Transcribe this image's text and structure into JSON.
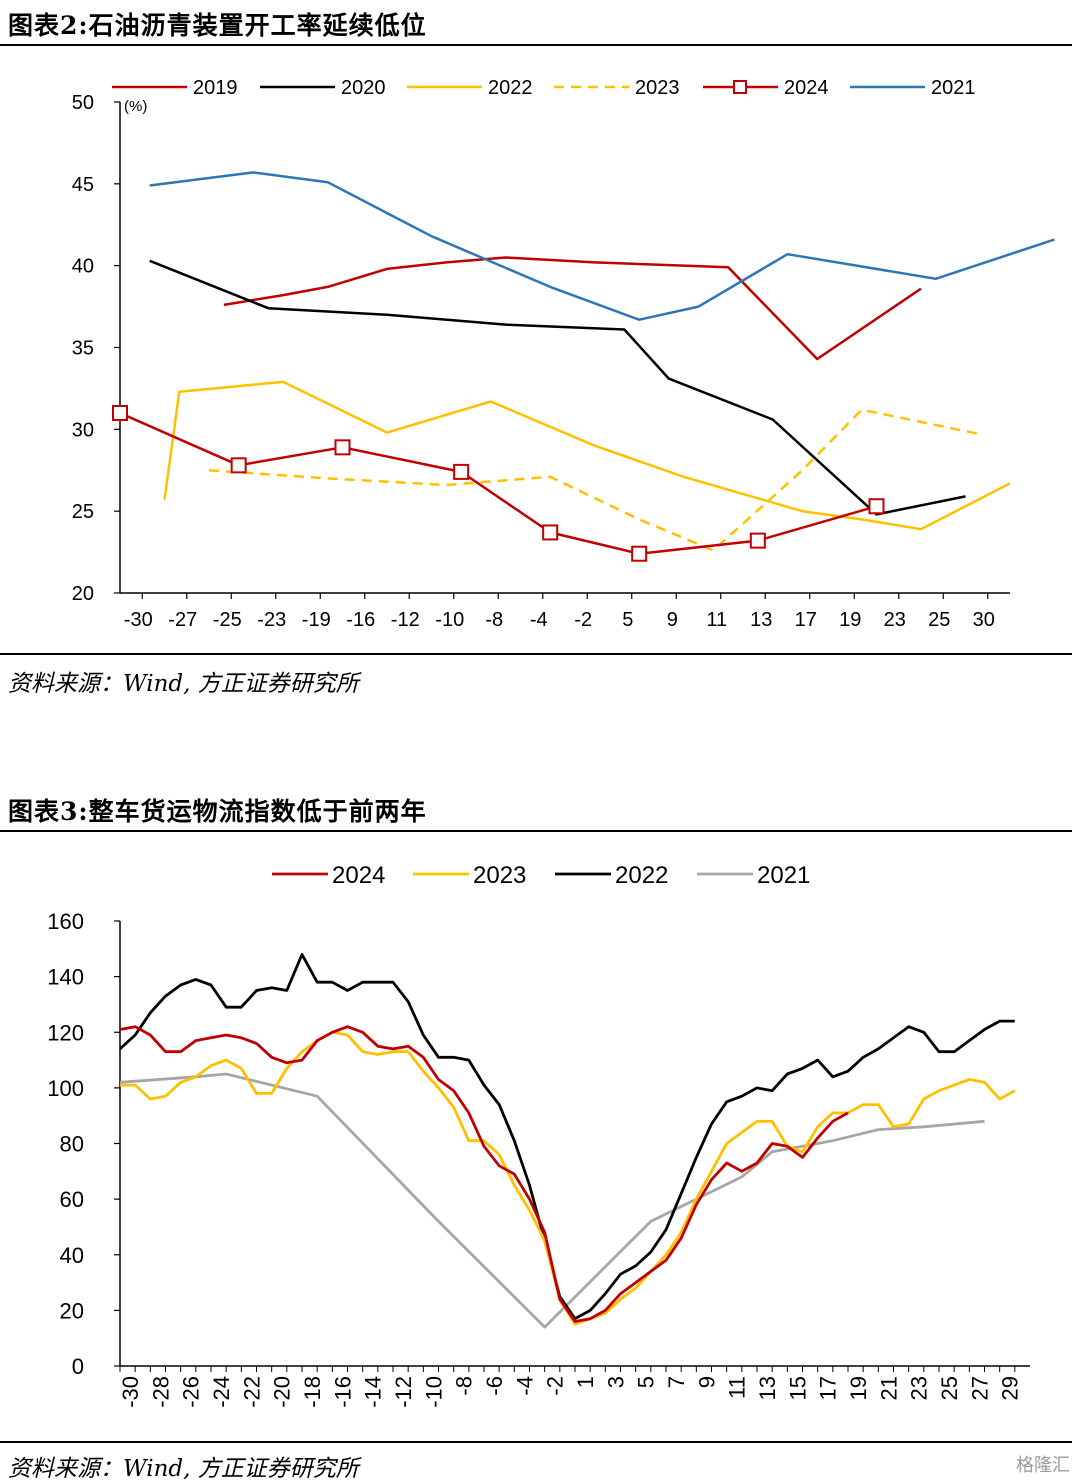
{
  "figure2": {
    "title": "图表2:石油沥青装置开工率延续低位",
    "source": "资料来源：Wind, 方正证券研究所"
  },
  "figure3": {
    "title": "图表3:整车货运物流指数低于前两年",
    "source": "资料来源：Wind, 方正证券研究所"
  },
  "watermark": "格隆汇",
  "chart_data": [
    {
      "type": "line",
      "title": "图表2:石油沥青装置开工率延续低位",
      "ylabel": "(%)",
      "ylim": [
        20,
        50
      ],
      "yticks": [
        20,
        25,
        30,
        35,
        40,
        45,
        50
      ],
      "xlim": [
        -30,
        30
      ],
      "xtick_labels": [
        "-30",
        "-27",
        "-25",
        "-23",
        "-19",
        "-16",
        "-12",
        "-10",
        "-8",
        "-4",
        "-2",
        "5",
        "9",
        "11",
        "13",
        "17",
        "19",
        "23",
        "25",
        "30"
      ],
      "legend_position": "top",
      "grid": false,
      "series": [
        {
          "name": "2019",
          "color": "#c00000",
          "dash": "solid",
          "marker": "none",
          "points": [
            [
              -23,
              37.6
            ],
            [
              -19,
              38.2
            ],
            [
              -16,
              38.7
            ],
            [
              -12,
              39.8
            ],
            [
              -8,
              40.2
            ],
            [
              -4,
              40.5
            ],
            [
              2,
              40.2
            ],
            [
              11,
              39.9
            ],
            [
              17,
              34.3
            ],
            [
              24,
              38.6
            ]
          ]
        },
        {
          "name": "2020",
          "color": "#000000",
          "dash": "solid",
          "marker": "none",
          "points": [
            [
              -28,
              40.3
            ],
            [
              -20,
              37.4
            ],
            [
              -12,
              37.0
            ],
            [
              -4,
              36.4
            ],
            [
              4,
              36.1
            ],
            [
              7,
              33.1
            ],
            [
              14,
              30.6
            ],
            [
              21,
              24.8
            ],
            [
              27,
              25.9
            ]
          ]
        },
        {
          "name": "2022",
          "color": "#ffc000",
          "dash": "solid",
          "marker": "none",
          "points": [
            [
              -27,
              25.7
            ],
            [
              -26,
              32.3
            ],
            [
              -19,
              32.9
            ],
            [
              -12,
              29.8
            ],
            [
              -5,
              31.7
            ],
            [
              2,
              29.0
            ],
            [
              8,
              27.1
            ],
            [
              16,
              25.0
            ],
            [
              20,
              24.5
            ],
            [
              24,
              23.9
            ],
            [
              30,
              26.7
            ]
          ]
        },
        {
          "name": "2023",
          "color": "#ffc000",
          "dash": "dashed",
          "marker": "none",
          "points": [
            [
              -24,
              27.5
            ],
            [
              -16,
              27.0
            ],
            [
              -8,
              26.6
            ],
            [
              -1,
              27.1
            ],
            [
              5,
              24.5
            ],
            [
              10,
              22.6
            ],
            [
              16,
              27.5
            ],
            [
              20,
              31.2
            ],
            [
              28,
              29.7
            ]
          ]
        },
        {
          "name": "2024",
          "color": "#c00000",
          "dash": "solid",
          "marker": "square",
          "points": [
            [
              -30,
              31.0
            ],
            [
              -22,
              27.8
            ],
            [
              -15,
              28.9
            ],
            [
              -7,
              27.4
            ],
            [
              -1,
              23.7
            ],
            [
              5,
              22.4
            ],
            [
              13,
              23.2
            ],
            [
              21,
              25.3
            ]
          ]
        },
        {
          "name": "2021",
          "color": "#2e75b6",
          "dash": "solid",
          "marker": "none",
          "points": [
            [
              -28,
              44.9
            ],
            [
              -21,
              45.7
            ],
            [
              -16,
              45.1
            ],
            [
              -9,
              41.8
            ],
            [
              -1,
              38.7
            ],
            [
              5,
              36.7
            ],
            [
              9,
              37.5
            ],
            [
              15,
              40.7
            ],
            [
              25,
              39.2
            ],
            [
              33,
              41.6
            ]
          ]
        }
      ]
    },
    {
      "type": "line",
      "title": "图表3:整车货运物流指数低于前两年",
      "ylim": [
        0,
        160
      ],
      "yticks": [
        0,
        20,
        40,
        60,
        80,
        100,
        120,
        140,
        160
      ],
      "xlim": [
        -30,
        30
      ],
      "xtick_labels": [
        "-30",
        "-28",
        "-26",
        "-24",
        "-22",
        "-20",
        "-18",
        "-16",
        "-14",
        "-12",
        "-10",
        "-8",
        "-6",
        "-4",
        "-2",
        "1",
        "3",
        "5",
        "7",
        "9",
        "11",
        "13",
        "15",
        "17",
        "19",
        "21",
        "23",
        "25",
        "27",
        "29"
      ],
      "legend_position": "top",
      "grid": false,
      "series": [
        {
          "name": "2024",
          "color": "#c00000",
          "points": [
            [
              -30,
              121
            ],
            [
              -29,
              122
            ],
            [
              -28,
              119
            ],
            [
              -27,
              113
            ],
            [
              -26,
              113
            ],
            [
              -25,
              117
            ],
            [
              -24,
              118
            ],
            [
              -23,
              119
            ],
            [
              -22,
              118
            ],
            [
              -21,
              116
            ],
            [
              -20,
              111
            ],
            [
              -19,
              109
            ],
            [
              -18,
              110
            ],
            [
              -17,
              117
            ],
            [
              -16,
              120
            ],
            [
              -15,
              122
            ],
            [
              -14,
              120
            ],
            [
              -13,
              115
            ],
            [
              -12,
              114
            ],
            [
              -11,
              115
            ],
            [
              -10,
              111
            ],
            [
              -9,
              103
            ],
            [
              -8,
              99
            ],
            [
              -7,
              91
            ],
            [
              -6,
              79
            ],
            [
              -5,
              72
            ],
            [
              -4,
              69
            ],
            [
              -3,
              60
            ],
            [
              -2,
              48
            ],
            [
              -1,
              24
            ],
            [
              0,
              16
            ],
            [
              1,
              17
            ],
            [
              2,
              20
            ],
            [
              3,
              26
            ],
            [
              4,
              30
            ],
            [
              5,
              34
            ],
            [
              6,
              38
            ],
            [
              7,
              46
            ],
            [
              8,
              58
            ],
            [
              9,
              67
            ],
            [
              10,
              73
            ],
            [
              11,
              70
            ],
            [
              12,
              73
            ],
            [
              13,
              80
            ],
            [
              14,
              79
            ],
            [
              15,
              75
            ],
            [
              16,
              82
            ],
            [
              17,
              88
            ],
            [
              18,
              91
            ]
          ]
        },
        {
          "name": "2023",
          "color": "#ffc000",
          "points": [
            [
              -30,
              101
            ],
            [
              -29,
              101
            ],
            [
              -28,
              96
            ],
            [
              -27,
              97
            ],
            [
              -26,
              102
            ],
            [
              -25,
              104
            ],
            [
              -24,
              108
            ],
            [
              -23,
              110
            ],
            [
              -22,
              107
            ],
            [
              -21,
              98
            ],
            [
              -20,
              98
            ],
            [
              -19,
              107
            ],
            [
              -18,
              113
            ],
            [
              -17,
              117
            ],
            [
              -16,
              120
            ],
            [
              -15,
              119
            ],
            [
              -14,
              113
            ],
            [
              -13,
              112
            ],
            [
              -12,
              113
            ],
            [
              -11,
              113
            ],
            [
              -10,
              106
            ],
            [
              -9,
              100
            ],
            [
              -8,
              93
            ],
            [
              -7,
              81
            ],
            [
              -6,
              81
            ],
            [
              -5,
              76
            ],
            [
              -4,
              65
            ],
            [
              -3,
              56
            ],
            [
              -2,
              45
            ],
            [
              -1,
              24
            ],
            [
              0,
              15
            ],
            [
              1,
              17
            ],
            [
              2,
              19
            ],
            [
              3,
              24
            ],
            [
              4,
              28
            ],
            [
              5,
              34
            ],
            [
              6,
              40
            ],
            [
              7,
              48
            ],
            [
              8,
              60
            ],
            [
              9,
              70
            ],
            [
              10,
              80
            ],
            [
              11,
              84
            ],
            [
              12,
              88
            ],
            [
              13,
              88
            ],
            [
              14,
              79
            ],
            [
              15,
              77
            ],
            [
              16,
              86
            ],
            [
              17,
              91
            ],
            [
              18,
              91
            ],
            [
              19,
              94
            ],
            [
              20,
              94
            ],
            [
              21,
              86
            ],
            [
              22,
              87
            ],
            [
              23,
              96
            ],
            [
              24,
              99
            ],
            [
              25,
              101
            ],
            [
              26,
              103
            ],
            [
              27,
              102
            ],
            [
              28,
              96
            ],
            [
              29,
              99
            ]
          ]
        },
        {
          "name": "2022",
          "color": "#000000",
          "points": [
            [
              -30,
              114
            ],
            [
              -29,
              119
            ],
            [
              -28,
              127
            ],
            [
              -27,
              133
            ],
            [
              -26,
              137
            ],
            [
              -25,
              139
            ],
            [
              -24,
              137
            ],
            [
              -23,
              129
            ],
            [
              -22,
              129
            ],
            [
              -21,
              135
            ],
            [
              -20,
              136
            ],
            [
              -19,
              135
            ],
            [
              -18,
              148
            ],
            [
              -17,
              138
            ],
            [
              -16,
              138
            ],
            [
              -15,
              135
            ],
            [
              -14,
              138
            ],
            [
              -13,
              138
            ],
            [
              -12,
              138
            ],
            [
              -11,
              131
            ],
            [
              -10,
              119
            ],
            [
              -9,
              111
            ],
            [
              -8,
              111
            ],
            [
              -7,
              110
            ],
            [
              -6,
              101
            ],
            [
              -5,
              94
            ],
            [
              -4,
              81
            ],
            [
              -3,
              65
            ],
            [
              -2,
              45
            ],
            [
              -1,
              25
            ],
            [
              0,
              17
            ],
            [
              1,
              20
            ],
            [
              2,
              26
            ],
            [
              3,
              33
            ],
            [
              4,
              36
            ],
            [
              5,
              41
            ],
            [
              6,
              49
            ],
            [
              7,
              62
            ],
            [
              8,
              75
            ],
            [
              9,
              87
            ],
            [
              10,
              95
            ],
            [
              11,
              97
            ],
            [
              12,
              100
            ],
            [
              13,
              99
            ],
            [
              14,
              105
            ],
            [
              15,
              107
            ],
            [
              16,
              110
            ],
            [
              17,
              104
            ],
            [
              18,
              106
            ],
            [
              19,
              111
            ],
            [
              20,
              114
            ],
            [
              21,
              118
            ],
            [
              22,
              122
            ],
            [
              23,
              120
            ],
            [
              24,
              113
            ],
            [
              25,
              113
            ],
            [
              26,
              117
            ],
            [
              27,
              121
            ],
            [
              28,
              124
            ],
            [
              29,
              124
            ]
          ]
        },
        {
          "name": "2021",
          "color": "#a6a6a6",
          "points": [
            [
              -30,
              102
            ],
            [
              -25,
              104
            ],
            [
              -23,
              105
            ],
            [
              -17,
              97
            ],
            [
              -9,
              52
            ],
            [
              -2,
              14
            ],
            [
              5,
              52
            ],
            [
              11,
              68
            ],
            [
              13,
              77
            ],
            [
              17,
              81
            ],
            [
              20,
              85
            ],
            [
              23,
              86
            ],
            [
              27,
              88
            ]
          ]
        }
      ]
    }
  ]
}
